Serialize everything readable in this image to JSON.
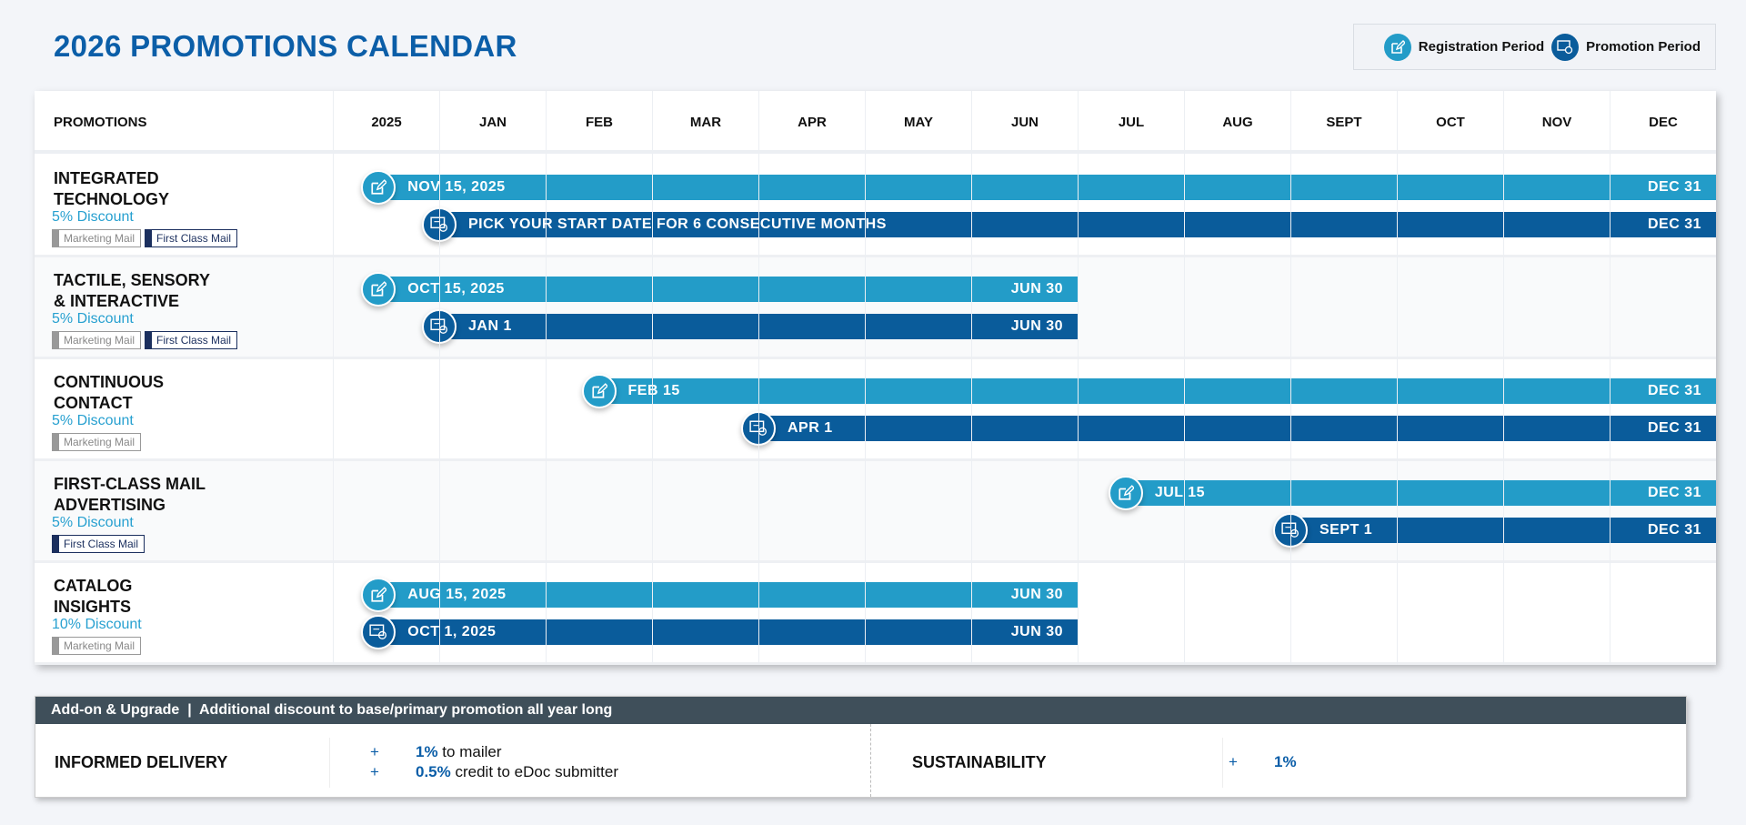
{
  "title": "2026 PROMOTIONS CALENDAR",
  "legend": {
    "registration": "Registration Period",
    "promotion": "Promotion Period"
  },
  "colors": {
    "registration": "#239cc8",
    "promotion": "#0a5c9b",
    "title": "#0b5ea8"
  },
  "header": {
    "promotions": "PROMOTIONS",
    "columns": [
      "2025",
      "JAN",
      "FEB",
      "MAR",
      "APR",
      "MAY",
      "JUN",
      "JUL",
      "AUG",
      "SEPT",
      "OCT",
      "NOV",
      "DEC"
    ]
  },
  "rows": [
    {
      "name": "INTEGRATED\nTECHNOLOGY",
      "discount": "5% Discount",
      "tags": [
        "Marketing Mail",
        "First Class Mail"
      ],
      "registration": {
        "start": "2025-11-15",
        "end": "2026-12-31",
        "start_label": "NOV 15, 2025",
        "end_label": "DEC 31"
      },
      "promotion": {
        "start": "2026-01-01",
        "end": "2026-12-31",
        "start_label": "PICK YOUR START DATE FOR 6 CONSECUTIVE MONTHS",
        "end_label": "DEC 31"
      }
    },
    {
      "name": "TACTILE, SENSORY\n& INTERACTIVE",
      "discount": "5% Discount",
      "tags": [
        "Marketing Mail",
        "First Class Mail"
      ],
      "registration": {
        "start": "2025-10-15",
        "end": "2026-06-30",
        "start_label": "OCT 15, 2025",
        "end_label": "JUN 30"
      },
      "promotion": {
        "start": "2026-01-01",
        "end": "2026-06-30",
        "start_label": "JAN 1",
        "end_label": "JUN 30"
      }
    },
    {
      "name": "CONTINUOUS\nCONTACT",
      "discount": "5% Discount",
      "tags": [
        "Marketing Mail"
      ],
      "registration": {
        "start": "2026-02-15",
        "end": "2026-12-31",
        "start_label": "FEB 15",
        "end_label": "DEC 31"
      },
      "promotion": {
        "start": "2026-04-01",
        "end": "2026-12-31",
        "start_label": "APR 1",
        "end_label": "DEC 31"
      }
    },
    {
      "name": "FIRST-CLASS MAIL\nADVERTISING",
      "discount": "5% Discount",
      "tags": [
        "First Class Mail"
      ],
      "registration": {
        "start": "2026-07-15",
        "end": "2026-12-31",
        "start_label": "JUL 15",
        "end_label": "DEC 31"
      },
      "promotion": {
        "start": "2026-09-01",
        "end": "2026-12-31",
        "start_label": "SEPT 1",
        "end_label": "DEC 31"
      }
    },
    {
      "name": "CATALOG\nINSIGHTS",
      "discount": "10% Discount",
      "tags": [
        "Marketing Mail"
      ],
      "registration": {
        "start": "2025-08-15",
        "end": "2026-06-30",
        "start_label": "AUG 15, 2025",
        "end_label": "JUN 30"
      },
      "promotion": {
        "start": "2025-10-01",
        "end": "2026-06-30",
        "start_label": "OCT 1, 2025",
        "end_label": "JUN 30"
      }
    }
  ],
  "addon": {
    "header": "Add-on & Upgrade  |  Additional discount to base/primary promotion all year long",
    "informed": {
      "label": "INFORMED DELIVERY",
      "lines": [
        {
          "plus": "+",
          "pct": "1%",
          "text": " to mailer"
        },
        {
          "plus": "+",
          "pct": "0.5%",
          "text": " credit to eDoc submitter"
        }
      ]
    },
    "sustain": {
      "label": "SUSTAINABILITY",
      "plus": "+",
      "pct": "1%"
    }
  }
}
